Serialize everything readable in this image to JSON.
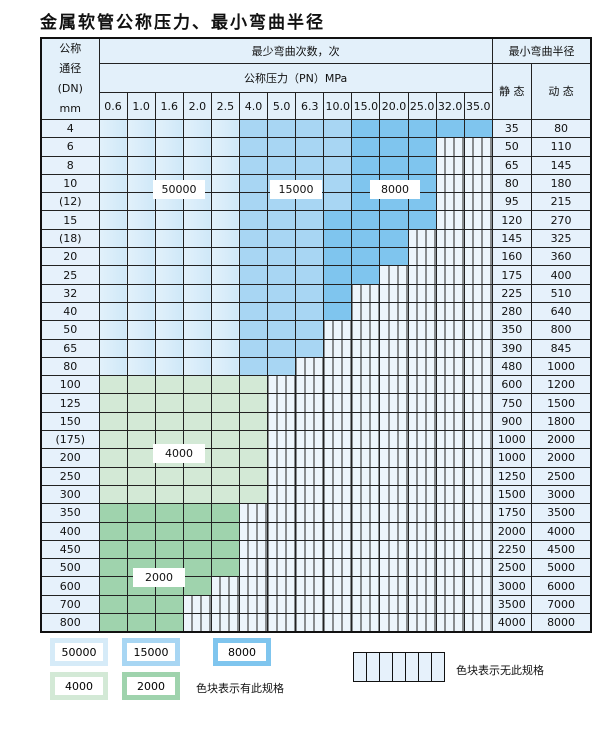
{
  "title": "金属软管公称压力、最小弯曲半径",
  "header": {
    "dn_label": [
      "公称",
      "通径",
      "(DN)",
      "mm"
    ],
    "bend_count": "最少弯曲次数，次",
    "pressure": "公称压力（PN）MPa",
    "radius": "最小弯曲半径",
    "static": "静 态",
    "dynamic": "动 态",
    "pressures": [
      "0.6",
      "1.0",
      "1.6",
      "2.0",
      "2.5",
      "4.0",
      "5.0",
      "6.3",
      "10.0",
      "15.0",
      "20.0",
      "25.0",
      "32.0",
      "35.0"
    ]
  },
  "categories": {
    "A": {
      "value": "50000",
      "color": "#cfe8f8"
    },
    "B": {
      "value": "15000",
      "color": "#a8d6f3"
    },
    "C": {
      "value": "8000",
      "color": "#7fc5ee"
    },
    "D": {
      "value": "4000",
      "color": "#d3e9d6"
    },
    "E": {
      "value": "2000",
      "color": "#9fd3ad"
    },
    "X": {
      "value": "",
      "color": "#edf5fb"
    }
  },
  "rows": [
    {
      "dn": "4",
      "static": "35",
      "dynamic": "80",
      "cells": "AAAAABBBBCCCCC"
    },
    {
      "dn": "6",
      "static": "50",
      "dynamic": "110",
      "cells": "AAAAABBBBCCCXX"
    },
    {
      "dn": "8",
      "static": "65",
      "dynamic": "145",
      "cells": "AAAAABBBBCCCXX"
    },
    {
      "dn": "10",
      "static": "80",
      "dynamic": "180",
      "cells": "AAAAABBBBCCCXX"
    },
    {
      "dn": "(12)",
      "static": "95",
      "dynamic": "215",
      "cells": "AAAAABBBBCCCXX"
    },
    {
      "dn": "15",
      "static": "120",
      "dynamic": "270",
      "cells": "AAAAABBBCCCCXX"
    },
    {
      "dn": "(18)",
      "static": "145",
      "dynamic": "325",
      "cells": "AAAAABBBCCCXXX"
    },
    {
      "dn": "20",
      "static": "160",
      "dynamic": "360",
      "cells": "AAAAABBBCCCXXX"
    },
    {
      "dn": "25",
      "static": "175",
      "dynamic": "400",
      "cells": "AAAAABBBCCXXXX"
    },
    {
      "dn": "32",
      "static": "225",
      "dynamic": "510",
      "cells": "AAAAABBBCXXXXX"
    },
    {
      "dn": "40",
      "static": "280",
      "dynamic": "640",
      "cells": "AAAAABBBCXXXXX"
    },
    {
      "dn": "50",
      "static": "350",
      "dynamic": "800",
      "cells": "AAAAABBBXXXXXX"
    },
    {
      "dn": "65",
      "static": "390",
      "dynamic": "845",
      "cells": "AAAAABBBXXXXXX"
    },
    {
      "dn": "80",
      "static": "480",
      "dynamic": "1000",
      "cells": "AAAAABBXXXXXXX"
    },
    {
      "dn": "100",
      "static": "600",
      "dynamic": "1200",
      "cells": "DDDDDDXXXXXXXX"
    },
    {
      "dn": "125",
      "static": "750",
      "dynamic": "1500",
      "cells": "DDDDDDXXXXXXXX"
    },
    {
      "dn": "150",
      "static": "900",
      "dynamic": "1800",
      "cells": "DDDDDDXXXXXXXX"
    },
    {
      "dn": "(175)",
      "static": "1000",
      "dynamic": "2000",
      "cells": "DDDDDDXXXXXXXX"
    },
    {
      "dn": "200",
      "static": "1000",
      "dynamic": "2000",
      "cells": "DDDDDDXXXXXXXX"
    },
    {
      "dn": "250",
      "static": "1250",
      "dynamic": "2500",
      "cells": "DDDDDDXXXXXXXX"
    },
    {
      "dn": "300",
      "static": "1500",
      "dynamic": "3000",
      "cells": "DDDDDDXXXXXXXX"
    },
    {
      "dn": "350",
      "static": "1750",
      "dynamic": "3500",
      "cells": "EEEEEXXXXXXXXX"
    },
    {
      "dn": "400",
      "static": "2000",
      "dynamic": "4000",
      "cells": "EEEEEXXXXXXXXX"
    },
    {
      "dn": "450",
      "static": "2250",
      "dynamic": "4500",
      "cells": "EEEEEXXXXXXXXX"
    },
    {
      "dn": "500",
      "static": "2500",
      "dynamic": "5000",
      "cells": "EEEEEXXXXXXXXX"
    },
    {
      "dn": "600",
      "static": "3000",
      "dynamic": "6000",
      "cells": "EEEEXXXXXXXXXX"
    },
    {
      "dn": "700",
      "static": "3500",
      "dynamic": "7000",
      "cells": "EEEXXXXXXXXXXX"
    },
    {
      "dn": "800",
      "static": "4000",
      "dynamic": "8000",
      "cells": "EEEXXXXXXXXXXX"
    }
  ],
  "legend": {
    "available_text": "色块表示有此规格",
    "unavailable_text": "色块表示无此规格"
  }
}
